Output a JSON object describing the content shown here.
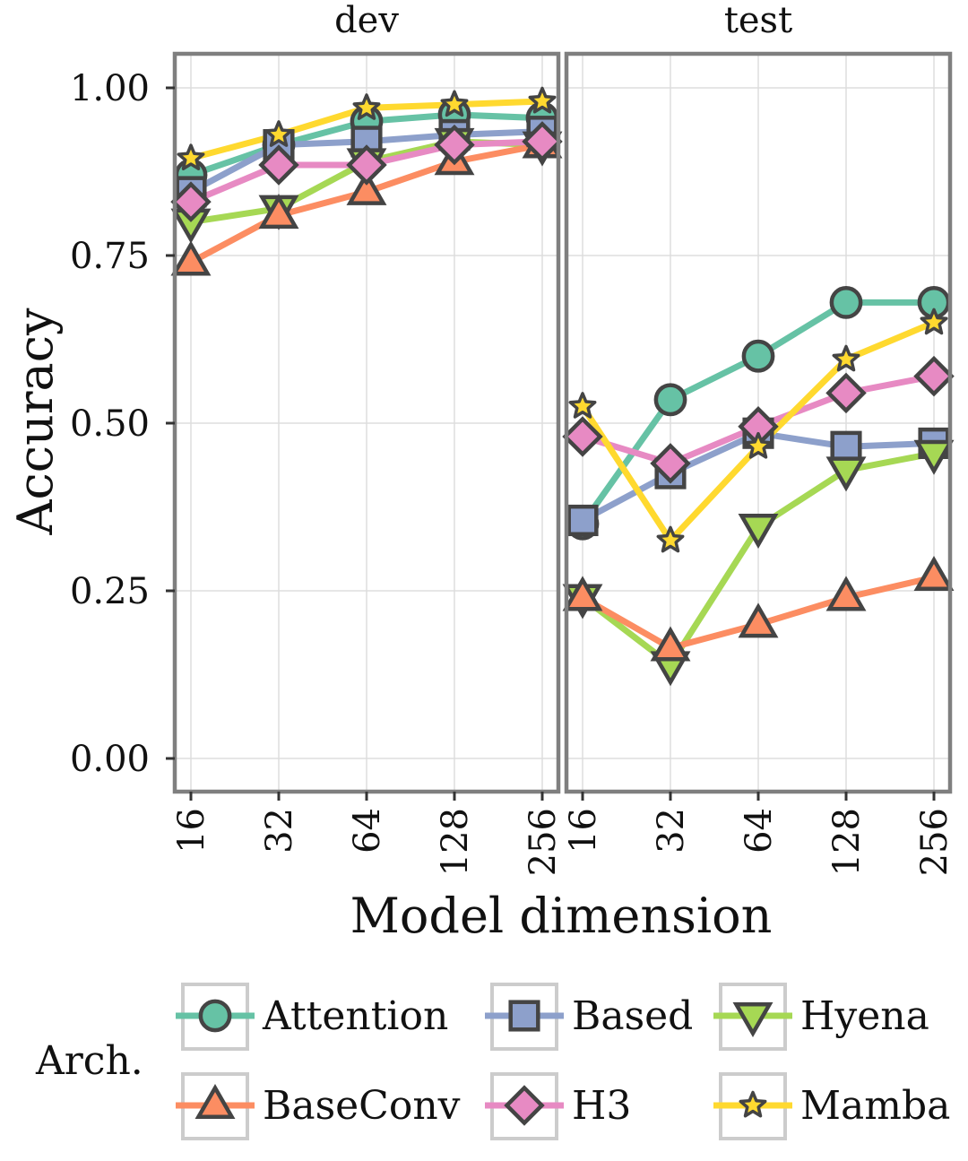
{
  "chart_data": {
    "type": "line",
    "facet_by": "split",
    "facets": [
      "dev",
      "test"
    ],
    "categories": [
      "16",
      "32",
      "64",
      "128",
      "256"
    ],
    "xlabel": "Model dimension",
    "ylabel": "Accuracy",
    "ylim": [
      0,
      1
    ],
    "y_ticks": [
      "0.00",
      "0.25",
      "0.50",
      "0.75",
      "1.00"
    ],
    "y_tick_values": [
      0,
      0.25,
      0.5,
      0.75,
      1.0
    ],
    "legend_title": "Arch.",
    "legend_position": "bottom",
    "grid": true,
    "series": [
      {
        "name": "Attention",
        "color": "#66c2a5",
        "marker": "circle",
        "dev": [
          0.87,
          0.915,
          0.95,
          0.96,
          0.955
        ],
        "test": [
          0.35,
          0.535,
          0.6,
          0.68,
          0.68
        ]
      },
      {
        "name": "Based",
        "color": "#8da0cb",
        "marker": "square",
        "dev": [
          0.845,
          0.915,
          0.92,
          0.93,
          0.935
        ],
        "test": [
          0.355,
          0.425,
          0.485,
          0.465,
          0.47
        ]
      },
      {
        "name": "Hyena",
        "color": "#a6d854",
        "marker": "triangle-down",
        "dev": [
          0.8,
          0.82,
          0.89,
          0.92,
          0.915
        ],
        "test": [
          0.24,
          0.14,
          0.345,
          0.43,
          0.455
        ]
      },
      {
        "name": "BaseConv",
        "color": "#fc8d62",
        "marker": "triangle-up",
        "dev": [
          0.74,
          0.81,
          0.845,
          0.89,
          0.915
        ],
        "test": [
          0.24,
          0.165,
          0.2,
          0.24,
          0.27
        ]
      },
      {
        "name": "H3",
        "color": "#e78ac3",
        "marker": "diamond",
        "dev": [
          0.83,
          0.885,
          0.885,
          0.915,
          0.92
        ],
        "test": [
          0.48,
          0.44,
          0.495,
          0.545,
          0.57
        ]
      },
      {
        "name": "Mamba",
        "color": "#ffd92f",
        "marker": "star",
        "dev": [
          0.895,
          0.93,
          0.97,
          0.975,
          0.98
        ],
        "test": [
          0.525,
          0.325,
          0.465,
          0.595,
          0.65
        ]
      }
    ]
  }
}
